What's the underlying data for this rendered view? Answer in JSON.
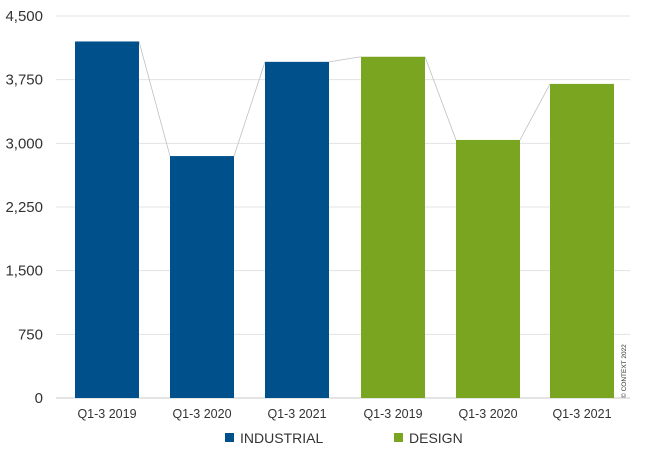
{
  "chart_data": {
    "type": "bar",
    "categories": [
      "Q1-3 2019",
      "Q1-3 2020",
      "Q1-3 2021",
      "Q1-3 2019",
      "Q1-3 2020",
      "Q1-3 2021"
    ],
    "series": [
      {
        "name": "INDUSTRIAL",
        "color": "#00508c",
        "points": [
          {
            "category_index": 0,
            "value": 4200
          },
          {
            "category_index": 1,
            "value": 2850
          },
          {
            "category_index": 2,
            "value": 3960
          }
        ]
      },
      {
        "name": "DESIGN",
        "color": "#7aa520",
        "points": [
          {
            "category_index": 3,
            "value": 4020
          },
          {
            "category_index": 4,
            "value": 3040
          },
          {
            "category_index": 5,
            "value": 3700
          }
        ]
      }
    ],
    "y_ticks": [
      "0",
      "750",
      "1,500",
      "2,250",
      "3,000",
      "3,750",
      "4,500"
    ],
    "ylim": [
      0,
      4500
    ],
    "grid": true,
    "legend": {
      "position": "bottom",
      "items": [
        {
          "label": "INDUSTRIAL",
          "color": "#00508c"
        },
        {
          "label": "DESIGN",
          "color": "#7aa520"
        }
      ]
    },
    "copyright": "© CONTEXT 2022"
  }
}
